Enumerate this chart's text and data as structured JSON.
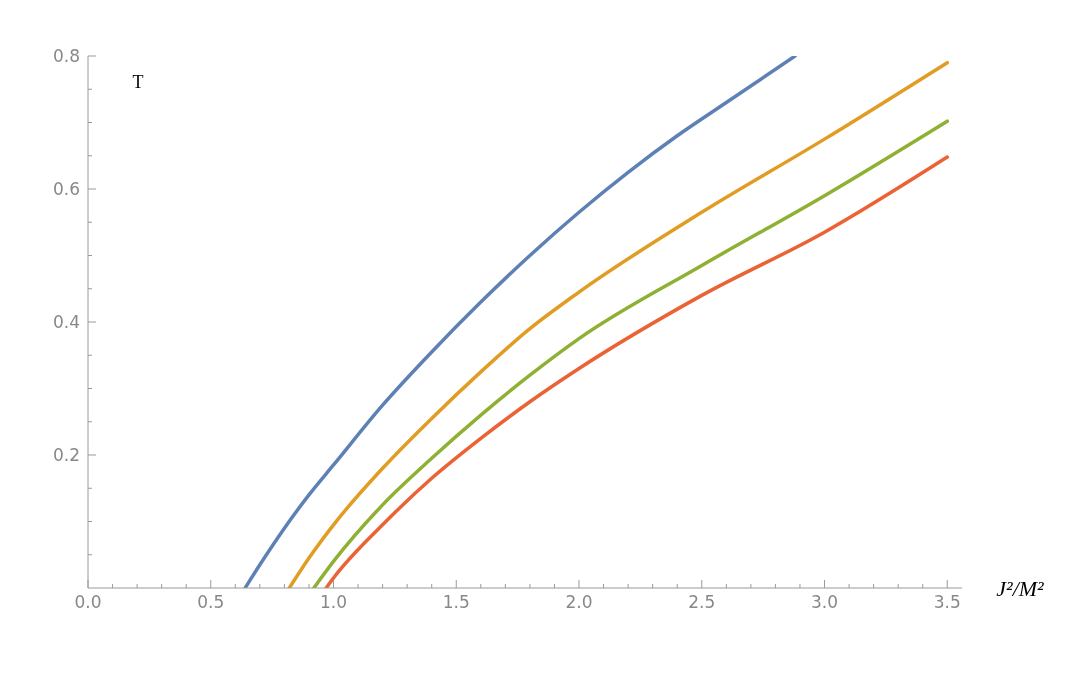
{
  "chart_data": {
    "type": "line",
    "xlabel": "J²/M²",
    "ylabel": "T",
    "xlim": [
      0,
      3.56
    ],
    "ylim": [
      0,
      0.8
    ],
    "xticks": [
      {
        "value": 0,
        "label": "0.0"
      },
      {
        "value": 0.1,
        "label": null
      },
      {
        "value": 0.2,
        "label": null
      },
      {
        "value": 0.3,
        "label": null
      },
      {
        "value": 0.4,
        "label": null
      },
      {
        "value": 0.5,
        "label": "0.5"
      },
      {
        "value": 0.6,
        "label": null
      },
      {
        "value": 0.7,
        "label": null
      },
      {
        "value": 0.8,
        "label": null
      },
      {
        "value": 0.9,
        "label": null
      },
      {
        "value": 1,
        "label": "1.0"
      },
      {
        "value": 1.1,
        "label": null
      },
      {
        "value": 1.2,
        "label": null
      },
      {
        "value": 1.3,
        "label": null
      },
      {
        "value": 1.4,
        "label": null
      },
      {
        "value": 1.5,
        "label": "1.5"
      },
      {
        "value": 1.6,
        "label": null
      },
      {
        "value": 1.7,
        "label": null
      },
      {
        "value": 1.8,
        "label": null
      },
      {
        "value": 1.9,
        "label": null
      },
      {
        "value": 2,
        "label": "2.0"
      },
      {
        "value": 2.1,
        "label": null
      },
      {
        "value": 2.2,
        "label": null
      },
      {
        "value": 2.3,
        "label": null
      },
      {
        "value": 2.4,
        "label": null
      },
      {
        "value": 2.5,
        "label": "2.5"
      },
      {
        "value": 2.6,
        "label": null
      },
      {
        "value": 2.7,
        "label": null
      },
      {
        "value": 2.8,
        "label": null
      },
      {
        "value": 2.9,
        "label": null
      },
      {
        "value": 3,
        "label": "3.0"
      },
      {
        "value": 3.1,
        "label": null
      },
      {
        "value": 3.2,
        "label": null
      },
      {
        "value": 3.3,
        "label": null
      },
      {
        "value": 3.4,
        "label": null
      },
      {
        "value": 3.5,
        "label": "3.5"
      }
    ],
    "yticks": [
      {
        "value": 0.05,
        "label": null
      },
      {
        "value": 0.1,
        "label": null
      },
      {
        "value": 0.15,
        "label": null
      },
      0.2,
      {
        "value": 0.25,
        "label": null
      },
      {
        "value": 0.3,
        "label": null
      },
      {
        "value": 0.35,
        "label": null
      },
      0.4,
      {
        "value": 0.45,
        "label": null
      },
      {
        "value": 0.5,
        "label": null
      },
      {
        "value": 0.55,
        "label": null
      },
      0.6,
      {
        "value": 0.65,
        "label": null
      },
      {
        "value": 0.7,
        "label": null
      },
      {
        "value": 0.75,
        "label": null
      },
      0.8
    ],
    "grid": false,
    "legend": false,
    "marker": "none",
    "line_style": "solid",
    "series": [
      {
        "color": "#5e81b5",
        "x": [
          0.64,
          0.7,
          0.8,
          0.9,
          1.0,
          1.2,
          1.4,
          1.6,
          1.8,
          2.0,
          2.2,
          2.4,
          2.6,
          2.88
        ],
        "values": [
          0,
          0.035,
          0.09,
          0.14,
          0.185,
          0.275,
          0.355,
          0.43,
          0.5,
          0.565,
          0.625,
          0.68,
          0.73,
          0.8
        ]
      },
      {
        "color": "#e19c24",
        "x": [
          0.82,
          0.9,
          1.0,
          1.2,
          1.4,
          1.6,
          1.8,
          2.0,
          2.5,
          3.0,
          3.5
        ],
        "values": [
          0,
          0.045,
          0.095,
          0.18,
          0.255,
          0.325,
          0.39,
          0.445,
          0.565,
          0.675,
          0.79
        ]
      },
      {
        "color": "#8fb032",
        "x": [
          0.92,
          1.0,
          1.2,
          1.4,
          1.6,
          1.8,
          2.0,
          2.5,
          3.0,
          3.5
        ],
        "values": [
          0,
          0.04,
          0.125,
          0.195,
          0.26,
          0.32,
          0.375,
          0.485,
          0.59,
          0.702
        ]
      },
      {
        "color": "#eb6235",
        "x": [
          0.97,
          1.0,
          1.2,
          1.4,
          1.6,
          1.8,
          2.0,
          2.5,
          3.0,
          3.5
        ],
        "values": [
          0,
          0.015,
          0.095,
          0.165,
          0.225,
          0.28,
          0.33,
          0.44,
          0.535,
          0.648
        ]
      }
    ]
  }
}
